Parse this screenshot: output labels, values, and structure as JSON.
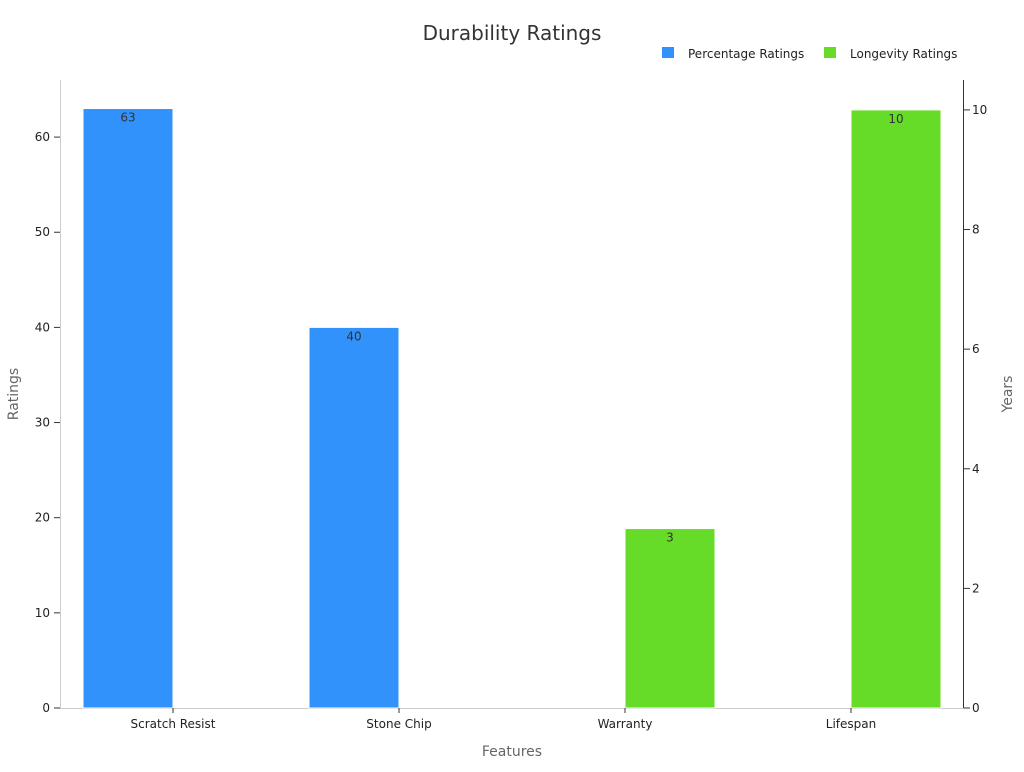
{
  "chart_data": {
    "type": "bar",
    "title": "Durability Ratings",
    "xlabel": "Features",
    "ylabel": "Ratings",
    "y2label": "Years",
    "categories": [
      "Scratch Resist",
      "Stone Chip",
      "Warranty",
      "Lifespan"
    ],
    "ylim": [
      0,
      66
    ],
    "y2lim": [
      0,
      10.5
    ],
    "yticks": [
      "0",
      "10",
      "20",
      "30",
      "40",
      "50",
      "60"
    ],
    "y2ticks": [
      "0",
      "2",
      "4",
      "6",
      "8",
      "10"
    ],
    "grid": false,
    "legend_position": "top-right",
    "series": [
      {
        "name": "Percentage Ratings",
        "axis": "left",
        "color": "#3092fa",
        "values": [
          63,
          40,
          null,
          null
        ],
        "labels": [
          "63",
          "40",
          "",
          ""
        ]
      },
      {
        "name": "Longevity Ratings",
        "axis": "right",
        "color": "#66db28",
        "values": [
          null,
          null,
          3,
          10
        ],
        "labels": [
          "",
          "",
          "3",
          "10"
        ]
      }
    ]
  }
}
